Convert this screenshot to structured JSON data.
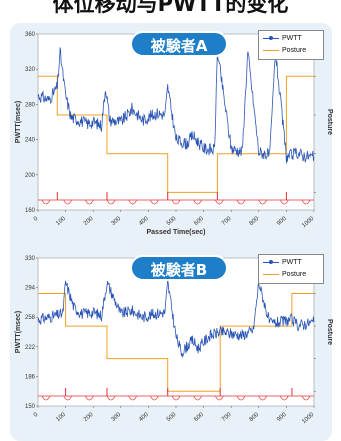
{
  "page": {
    "title": "体位移动与PWTT的变化"
  },
  "colors": {
    "panel_bg": "#e9f1f8",
    "pill": "#1e7fc8",
    "pwtt": "#2b55b5",
    "posture": "#f0a020",
    "marker": "#e03030"
  },
  "chart_data": [
    {
      "type": "line",
      "subject_label": "被験者A",
      "title": "",
      "xlabel": "Passed Time(sec)",
      "ylabel": "PWTT(msec)",
      "y2label": "Posture",
      "legend": {
        "position": "top-right",
        "entries": [
          "PWTT",
          "Posture"
        ]
      },
      "ylim": [
        160,
        360
      ],
      "xlim": [
        0,
        1000
      ],
      "grid": false,
      "series": [
        {
          "name": "PWTT",
          "x": [
            0,
            40,
            70,
            80,
            100,
            120,
            150,
            180,
            200,
            230,
            245,
            260,
            300,
            330,
            340,
            380,
            430,
            460,
            470,
            500,
            540,
            560,
            600,
            640,
            650,
            700,
            740,
            760,
            800,
            840,
            860,
            900,
            940,
            960,
            1000
          ],
          "values": [
            290,
            285,
            300,
            340,
            290,
            265,
            262,
            258,
            260,
            256,
            300,
            262,
            260,
            270,
            275,
            262,
            270,
            268,
            300,
            240,
            235,
            245,
            230,
            228,
            340,
            230,
            226,
            340,
            226,
            222,
            340,
            220,
            225,
            222,
            220
          ]
        },
        {
          "name": "Posture",
          "x": [
            0,
            70,
            70,
            250,
            250,
            470,
            470,
            650,
            650,
            900,
            900,
            1000
          ],
          "values": [
            3,
            3,
            2,
            2,
            1,
            1,
            0,
            0,
            1,
            1,
            3,
            3
          ]
        }
      ]
    },
    {
      "type": "line",
      "subject_label": "被験者B",
      "title": "",
      "xlabel": "",
      "ylabel": "PWTT(msec)",
      "y2label": "Posture",
      "legend": {
        "position": "top-right",
        "entries": [
          "PWTT",
          "Posture"
        ]
      },
      "ylim": [
        150,
        330
      ],
      "xlim": [
        0,
        1000
      ],
      "grid": false,
      "series": [
        {
          "name": "PWTT",
          "x": [
            0,
            40,
            90,
            100,
            130,
            160,
            200,
            230,
            250,
            300,
            340,
            380,
            420,
            460,
            470,
            500,
            520,
            560,
            580,
            620,
            660,
            700,
            740,
            780,
            800,
            840,
            880,
            920,
            940,
            1000
          ],
          "values": [
            255,
            258,
            262,
            300,
            270,
            262,
            264,
            260,
            300,
            262,
            266,
            258,
            262,
            264,
            300,
            235,
            215,
            230,
            220,
            235,
            240,
            238,
            236,
            242,
            300,
            250,
            252,
            255,
            248,
            252
          ]
        },
        {
          "name": "Posture",
          "x": [
            0,
            100,
            100,
            250,
            250,
            470,
            470,
            660,
            660,
            920,
            920,
            1000
          ],
          "values": [
            3,
            3,
            2,
            2,
            1,
            1,
            0,
            0,
            2,
            2,
            3,
            3
          ]
        }
      ]
    }
  ]
}
